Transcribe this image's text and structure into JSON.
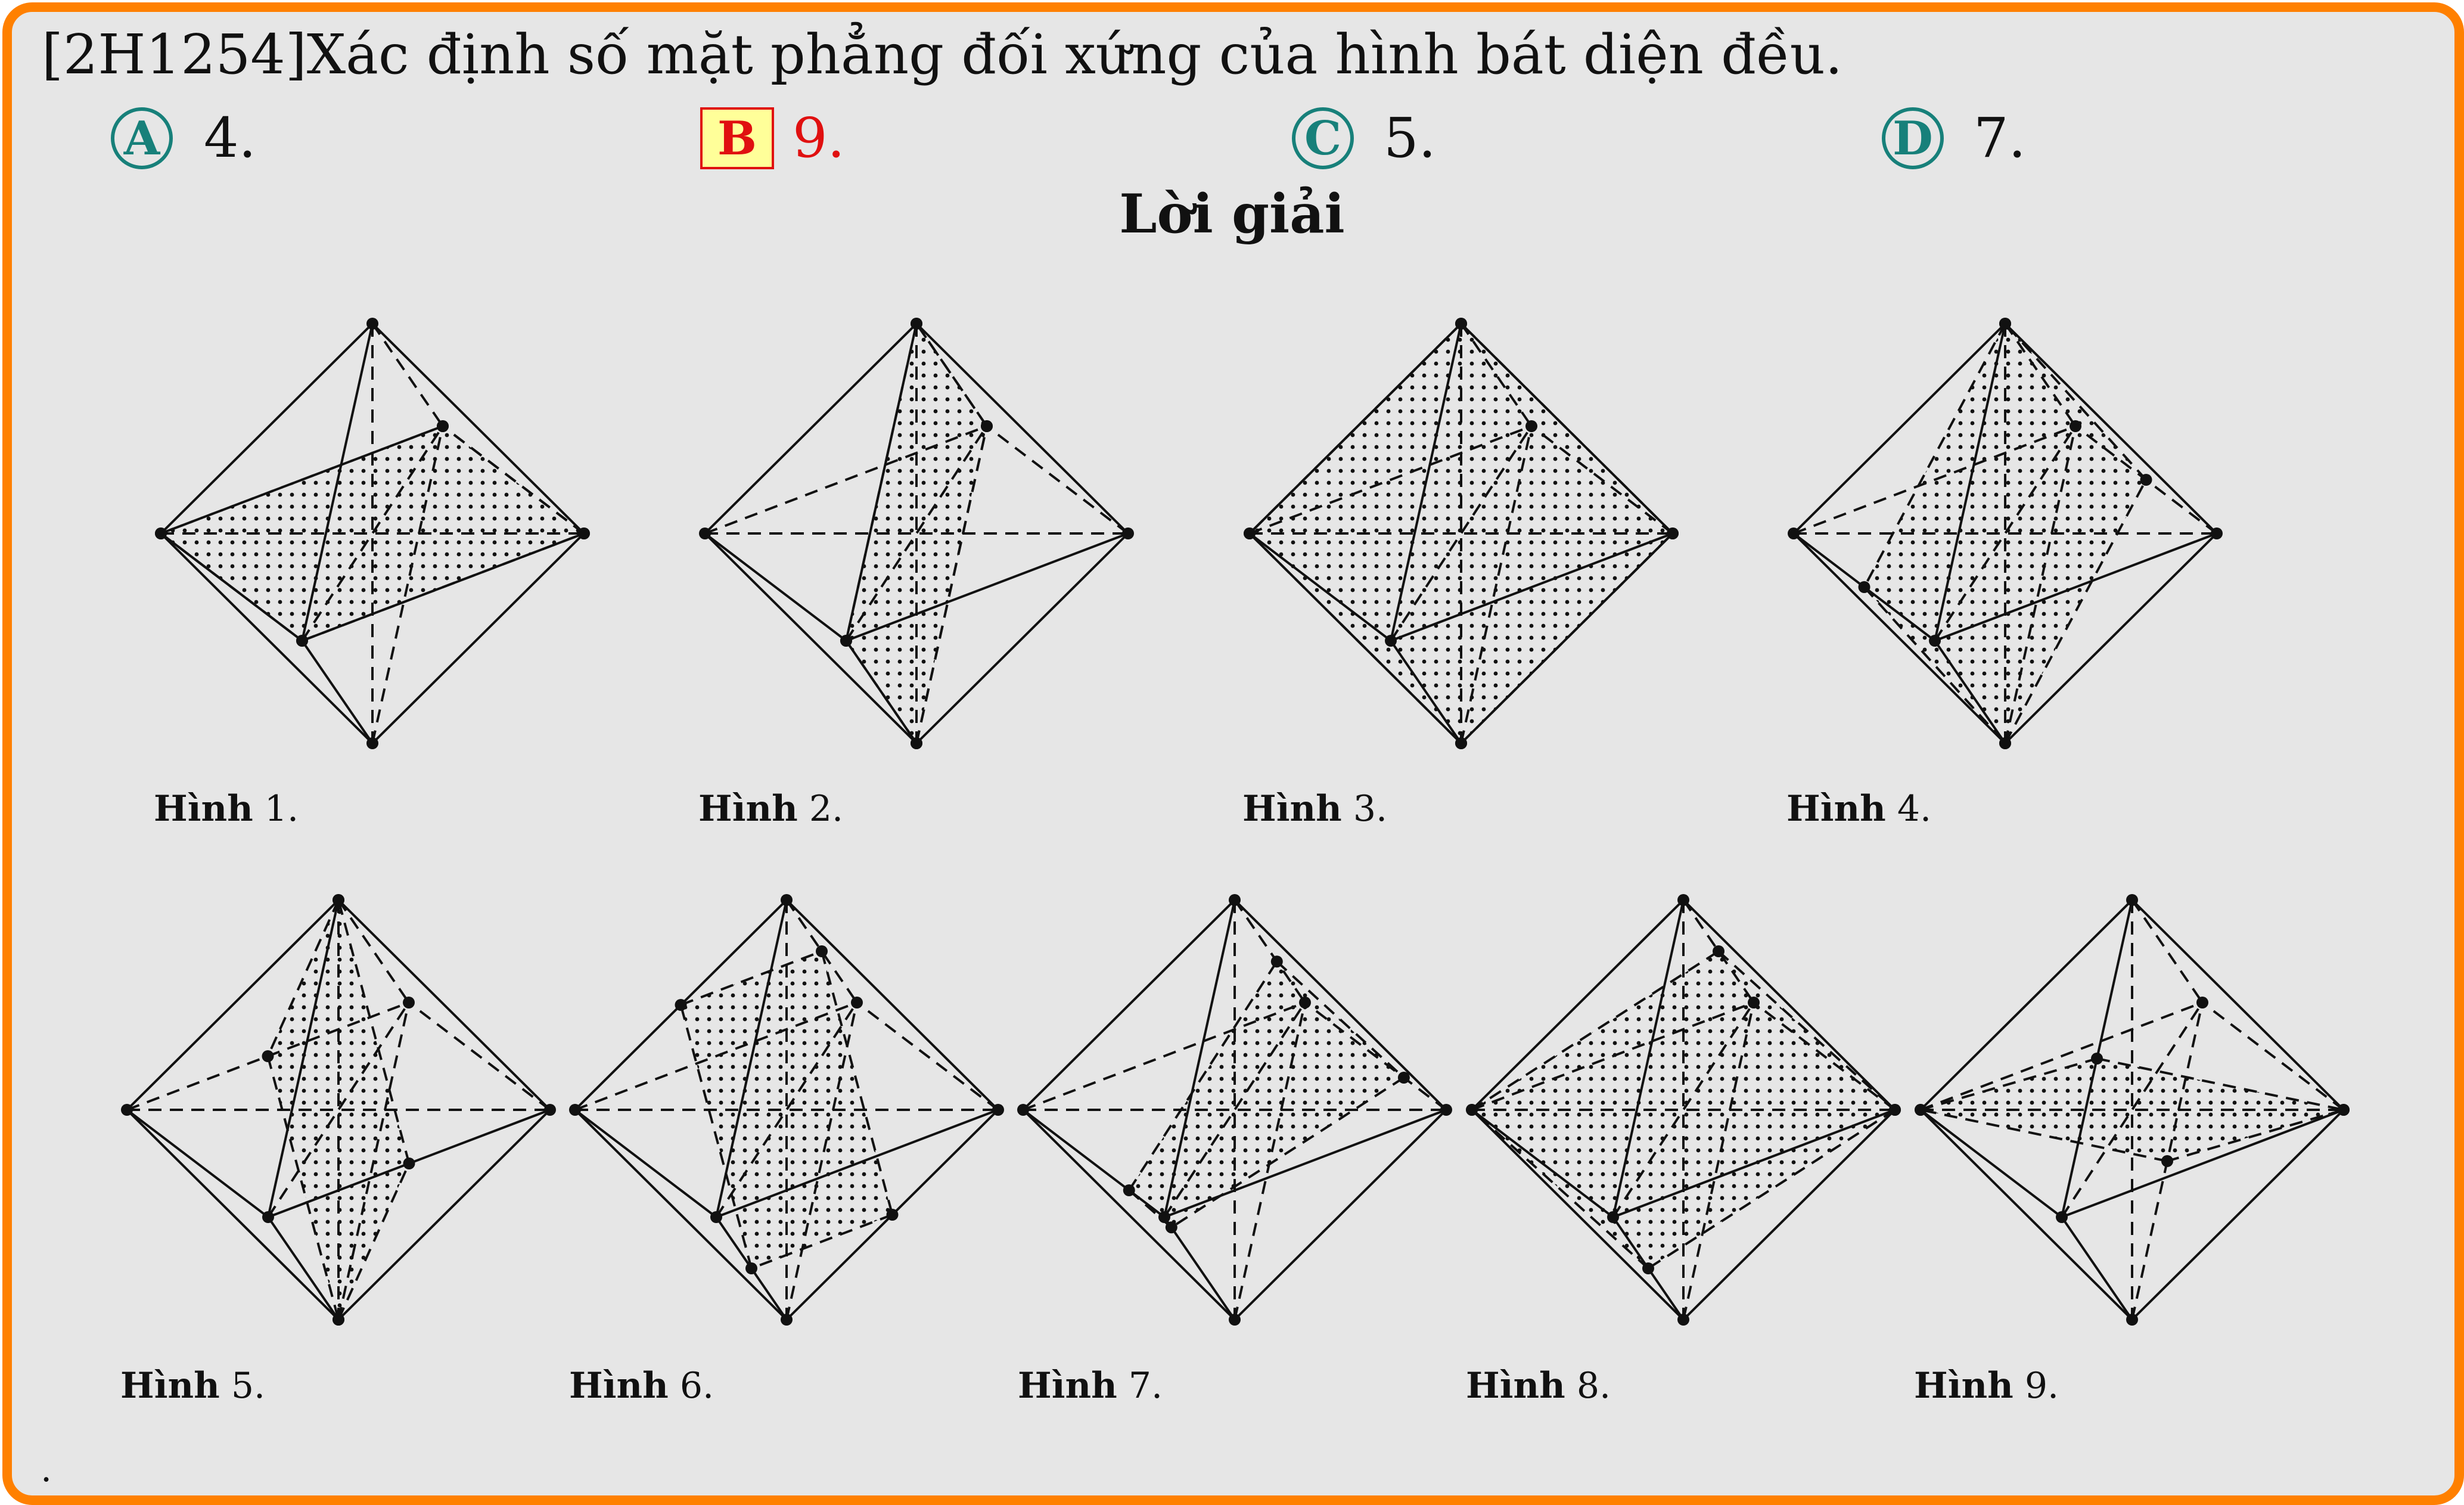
{
  "question": {
    "code": "[2H1254]",
    "text": "Xác định số mặt phẳng đối xứng của hình bát diện đều."
  },
  "choices": [
    {
      "letter": "A",
      "value": "4.",
      "correct": false
    },
    {
      "letter": "B",
      "value": "9.",
      "correct": true
    },
    {
      "letter": "C",
      "value": "5.",
      "correct": false
    },
    {
      "letter": "D",
      "value": "7.",
      "correct": false
    }
  ],
  "solution_title": "Lời giải",
  "figures": [
    {
      "label": "Hình",
      "num": "1."
    },
    {
      "label": "Hình",
      "num": "2."
    },
    {
      "label": "Hình",
      "num": "3."
    },
    {
      "label": "Hình",
      "num": "4."
    },
    {
      "label": "Hình",
      "num": "5."
    },
    {
      "label": "Hình",
      "num": "6."
    },
    {
      "label": "Hình",
      "num": "7."
    },
    {
      "label": "Hình",
      "num": "8."
    },
    {
      "label": "Hình",
      "num": "9."
    }
  ],
  "footer_mark": ".",
  "colors": {
    "frame": "#ff8000",
    "background": "#e6e6e6",
    "choice": "#17807a",
    "correct": "#e01010",
    "correct_fill": "#ffff99"
  }
}
